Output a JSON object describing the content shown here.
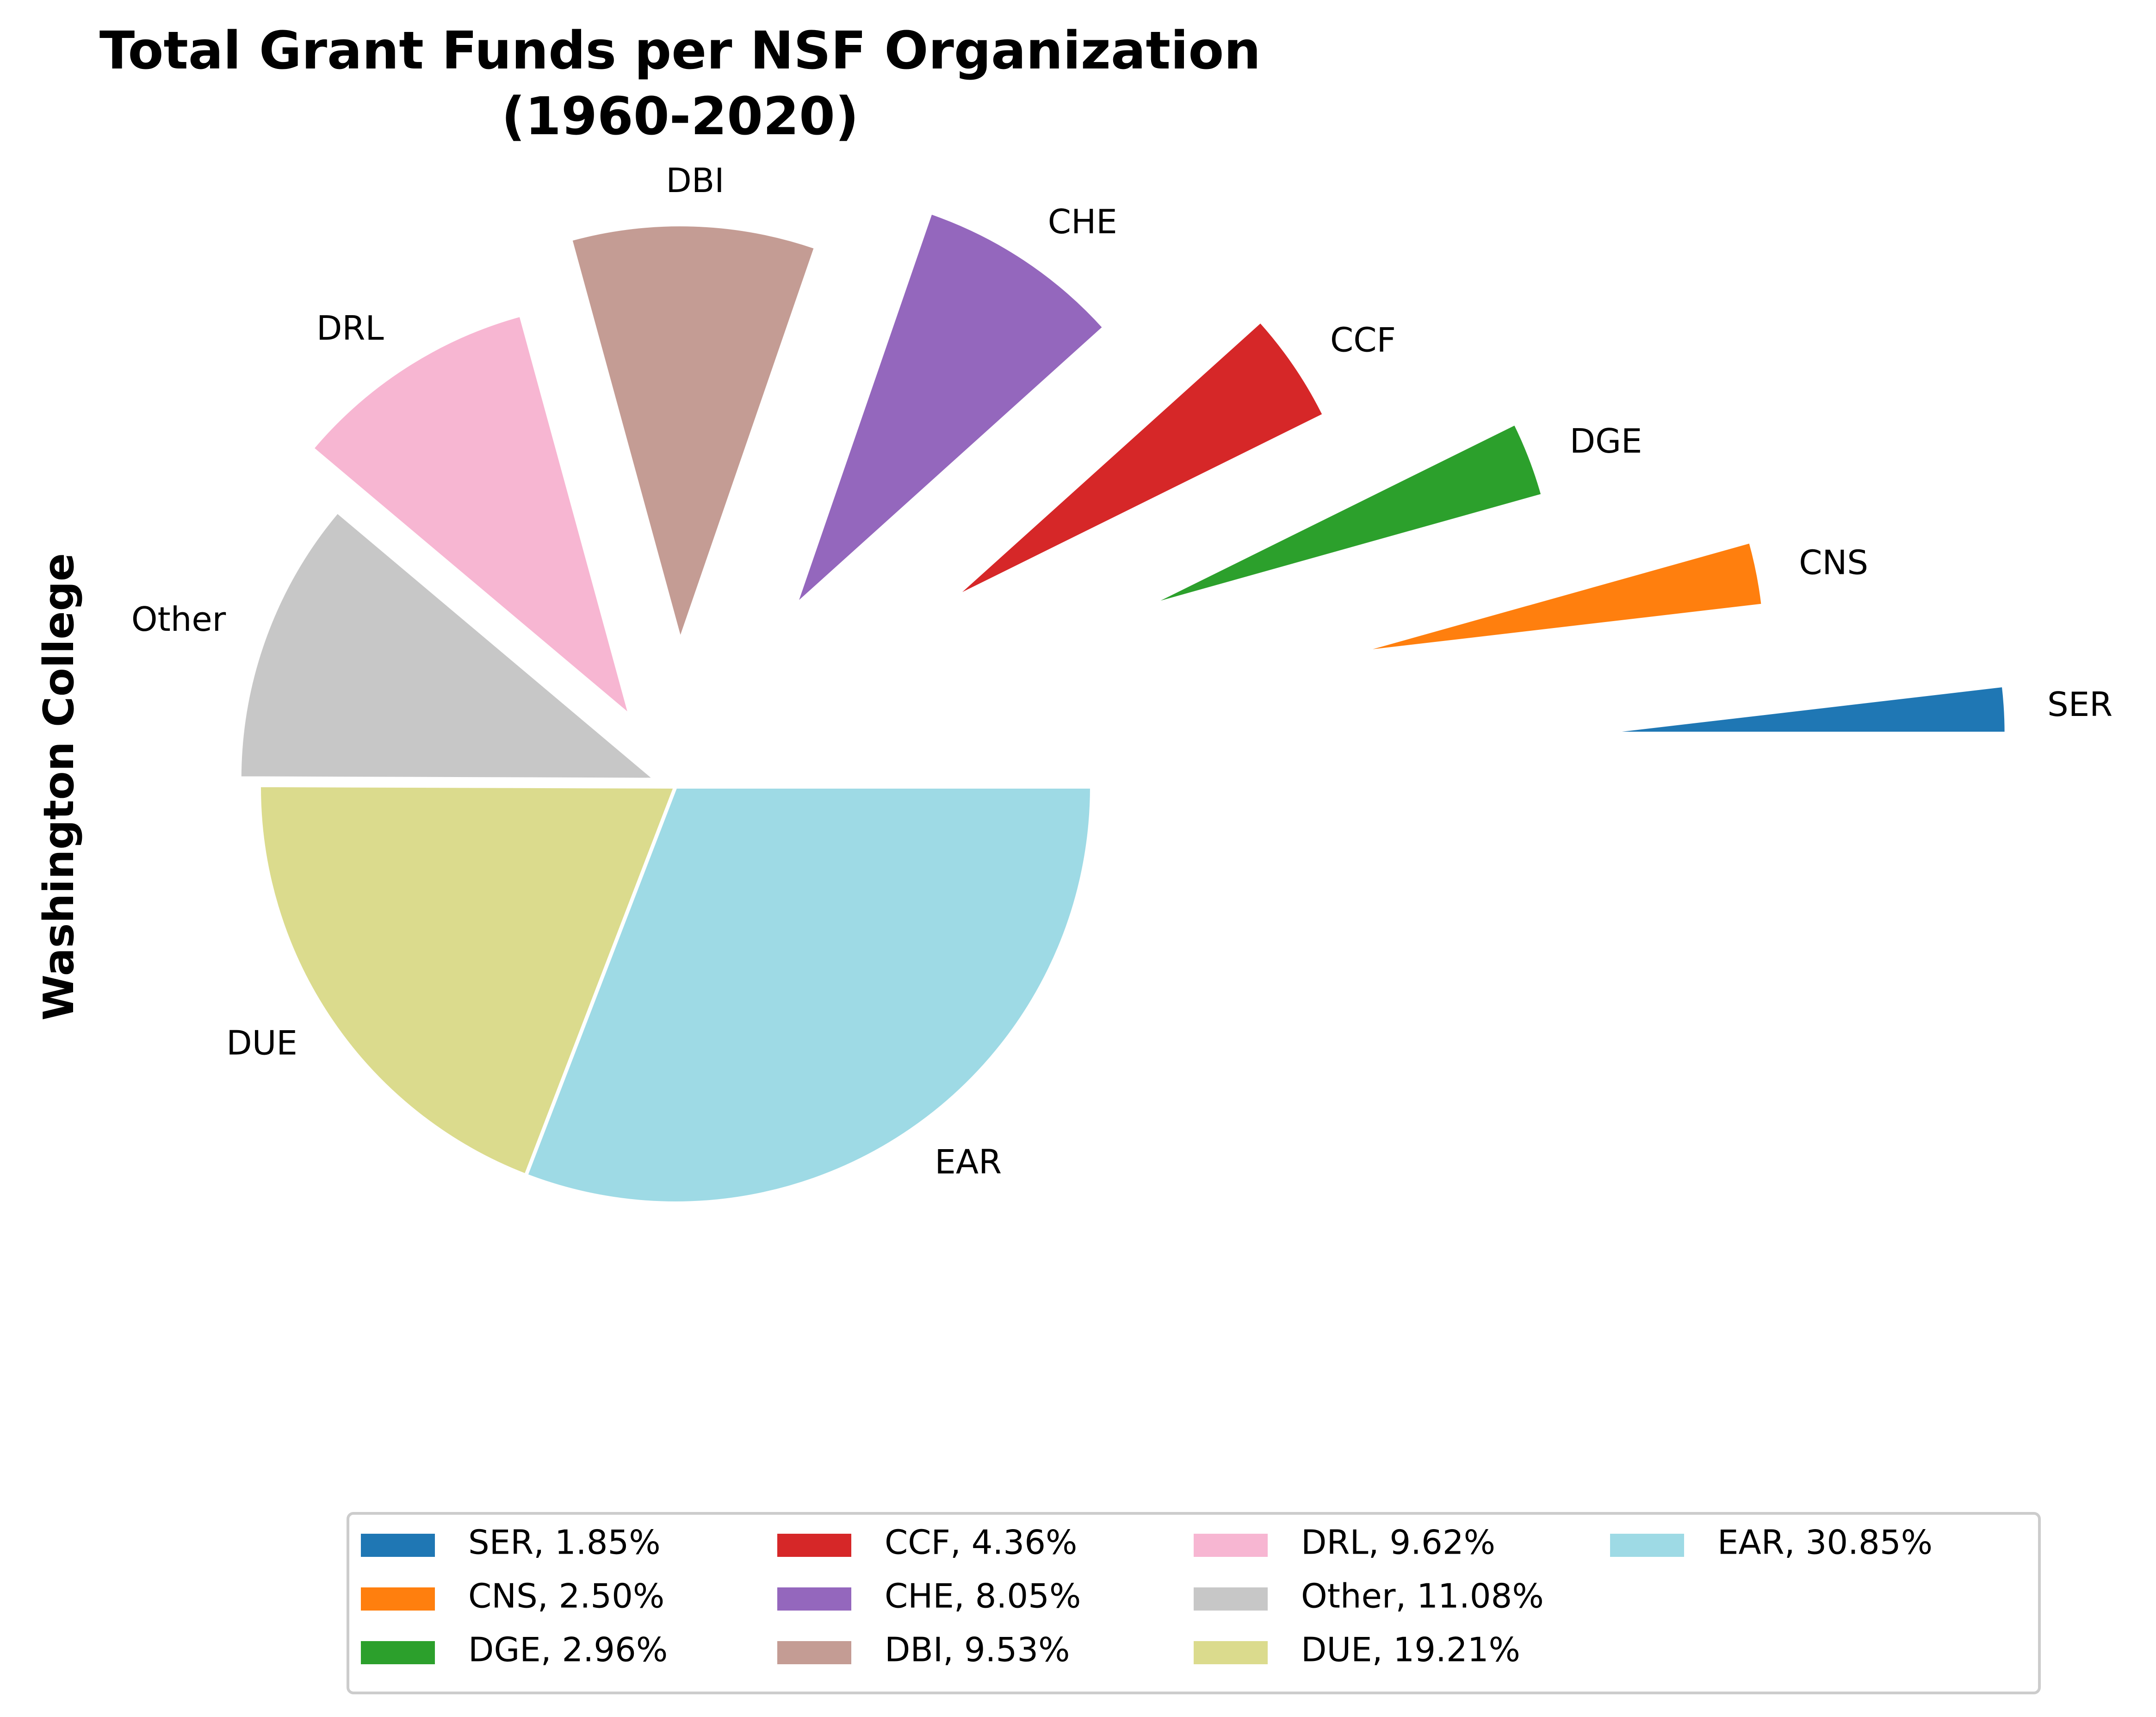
{
  "chart_data": {
    "type": "pie",
    "title_line1": "Total Grant Funds per NSF Organization",
    "title_line2": "(1960-2020)",
    "ylabel": "Washington College",
    "slices": [
      {
        "label": "SER",
        "value": 1.85,
        "color": "#1f77b4",
        "legend": "SER, 1.85%"
      },
      {
        "label": "CNS",
        "value": 2.5,
        "color": "#ff7f0e",
        "legend": "CNS, 2.50%"
      },
      {
        "label": "DGE",
        "value": 2.96,
        "color": "#2ca02c",
        "legend": "DGE, 2.96%"
      },
      {
        "label": "CCF",
        "value": 4.36,
        "color": "#d62728",
        "legend": "CCF, 4.36%"
      },
      {
        "label": "CHE",
        "value": 8.05,
        "color": "#9467bd",
        "legend": "CHE, 8.05%"
      },
      {
        "label": "DBI",
        "value": 9.53,
        "color": "#c49c94",
        "legend": "DBI, 9.53%"
      },
      {
        "label": "DRL",
        "value": 9.62,
        "color": "#f7b6d2",
        "legend": "DRL, 9.62%"
      },
      {
        "label": "Other",
        "value": 11.08,
        "color": "#c7c7c7",
        "legend": "Other, 11.08%"
      },
      {
        "label": "DUE",
        "value": 19.21,
        "color": "#dbdb8d",
        "legend": "DUE, 19.21%"
      },
      {
        "label": "EAR",
        "value": 30.85,
        "color": "#9edae5",
        "legend": "EAR, 30.85%"
      }
    ],
    "start_angle": 0,
    "direction": "counterclockwise",
    "legend_position": "bottom",
    "legend_columns": 4
  }
}
